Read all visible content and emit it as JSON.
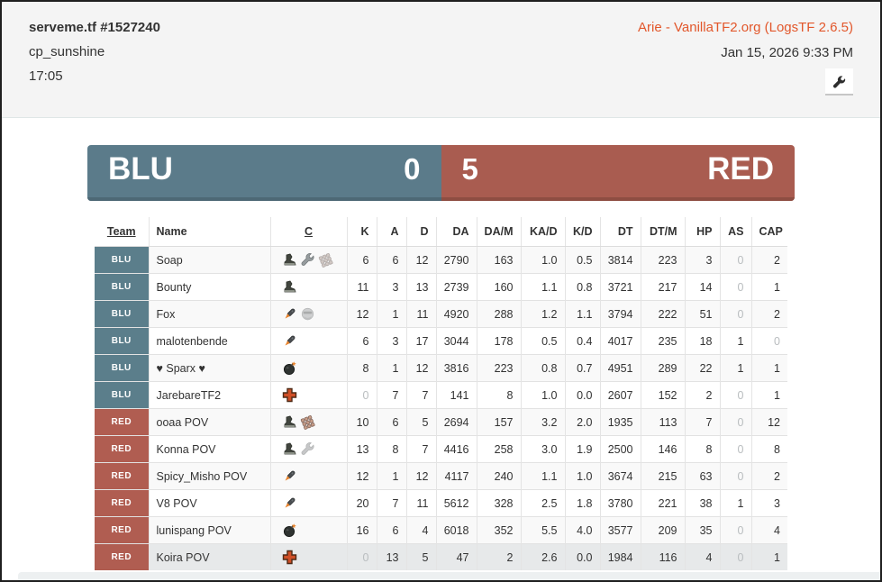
{
  "header": {
    "server_title": "serveme.tf #1527240",
    "map_name": "cp_sunshine",
    "duration": "17:05",
    "uploader_link": "Arie - VanillaTF2.org (LogsTF 2.6.5)",
    "date": "Jan 15, 2026 9:33 PM",
    "settings_icon": "wrench-icon"
  },
  "scoreboard": {
    "blu": {
      "label": "BLU",
      "score": "0",
      "color": "#5b7b8a"
    },
    "red": {
      "label": "RED",
      "score": "5",
      "color": "#a95c50"
    }
  },
  "table": {
    "columns": [
      "Team",
      "Name",
      "C",
      "K",
      "A",
      "D",
      "DA",
      "DA/M",
      "KA/D",
      "K/D",
      "DT",
      "DT/M",
      "HP",
      "AS",
      "CAP"
    ],
    "sortable_columns": [
      "Team",
      "C"
    ],
    "rows": [
      {
        "team": "BLU",
        "name": "Soap",
        "classes": [
          {
            "name": "scout",
            "faded": false
          },
          {
            "name": "engineer",
            "faded": false
          },
          {
            "name": "heavy",
            "faded": true
          }
        ],
        "stats": [
          "6",
          "6",
          "12",
          "2790",
          "163",
          "1.0",
          "0.5",
          "3814",
          "223",
          "3",
          "0",
          "2"
        ]
      },
      {
        "team": "BLU",
        "name": "Bounty",
        "classes": [
          {
            "name": "scout",
            "faded": false
          }
        ],
        "stats": [
          "11",
          "3",
          "13",
          "2739",
          "160",
          "1.1",
          "0.8",
          "3721",
          "217",
          "14",
          "0",
          "1"
        ]
      },
      {
        "team": "BLU",
        "name": "Fox",
        "classes": [
          {
            "name": "soldier",
            "faded": false
          },
          {
            "name": "spy",
            "faded": true
          }
        ],
        "stats": [
          "12",
          "1",
          "11",
          "4920",
          "288",
          "1.2",
          "1.1",
          "3794",
          "222",
          "51",
          "0",
          "2"
        ]
      },
      {
        "team": "BLU",
        "name": "malotenbende",
        "classes": [
          {
            "name": "soldier",
            "faded": false
          }
        ],
        "stats": [
          "6",
          "3",
          "17",
          "3044",
          "178",
          "0.5",
          "0.4",
          "4017",
          "235",
          "18",
          "1",
          "0"
        ]
      },
      {
        "team": "BLU",
        "name": "♥ Sparx ♥",
        "classes": [
          {
            "name": "demoman",
            "faded": false
          }
        ],
        "stats": [
          "8",
          "1",
          "12",
          "3816",
          "223",
          "0.8",
          "0.7",
          "4951",
          "289",
          "22",
          "1",
          "1"
        ]
      },
      {
        "team": "BLU",
        "name": "JarebareTF2",
        "classes": [
          {
            "name": "medic",
            "faded": false
          }
        ],
        "stats": [
          "0",
          "7",
          "7",
          "141",
          "8",
          "1.0",
          "0.0",
          "2607",
          "152",
          "2",
          "0",
          "1"
        ]
      },
      {
        "team": "RED",
        "name": "ooaa POV",
        "classes": [
          {
            "name": "scout",
            "faded": false
          },
          {
            "name": "heavy",
            "faded": false
          }
        ],
        "stats": [
          "10",
          "6",
          "5",
          "2694",
          "157",
          "3.2",
          "2.0",
          "1935",
          "113",
          "7",
          "0",
          "12"
        ]
      },
      {
        "team": "RED",
        "name": "Konna POV",
        "classes": [
          {
            "name": "scout",
            "faded": false
          },
          {
            "name": "engineer",
            "faded": true
          }
        ],
        "stats": [
          "13",
          "8",
          "7",
          "4416",
          "258",
          "3.0",
          "1.9",
          "2500",
          "146",
          "8",
          "0",
          "8"
        ]
      },
      {
        "team": "RED",
        "name": "Spicy_Misho POV",
        "classes": [
          {
            "name": "soldier",
            "faded": false
          }
        ],
        "stats": [
          "12",
          "1",
          "12",
          "4117",
          "240",
          "1.1",
          "1.0",
          "3674",
          "215",
          "63",
          "0",
          "2"
        ]
      },
      {
        "team": "RED",
        "name": "V8 POV",
        "classes": [
          {
            "name": "soldier",
            "faded": false
          }
        ],
        "stats": [
          "20",
          "7",
          "11",
          "5612",
          "328",
          "2.5",
          "1.8",
          "3780",
          "221",
          "38",
          "1",
          "3"
        ]
      },
      {
        "team": "RED",
        "name": "lunispang POV",
        "classes": [
          {
            "name": "demoman",
            "faded": false
          }
        ],
        "stats": [
          "16",
          "6",
          "4",
          "6018",
          "352",
          "5.5",
          "4.0",
          "3577",
          "209",
          "35",
          "0",
          "4"
        ]
      },
      {
        "team": "RED",
        "name": "Koira POV",
        "classes": [
          {
            "name": "medic",
            "faded": false
          }
        ],
        "stats": [
          "0",
          "13",
          "5",
          "47",
          "2",
          "2.6",
          "0.0",
          "1984",
          "116",
          "4",
          "0",
          "1"
        ],
        "highlighted": true
      }
    ]
  },
  "colors": {
    "blu_team": "#5b7b8a",
    "red_team": "#a95c50",
    "link_orange": "#e2572b",
    "zero_value_gray": "#b9bdbf",
    "header_band_bg": "#f4f4f4"
  }
}
